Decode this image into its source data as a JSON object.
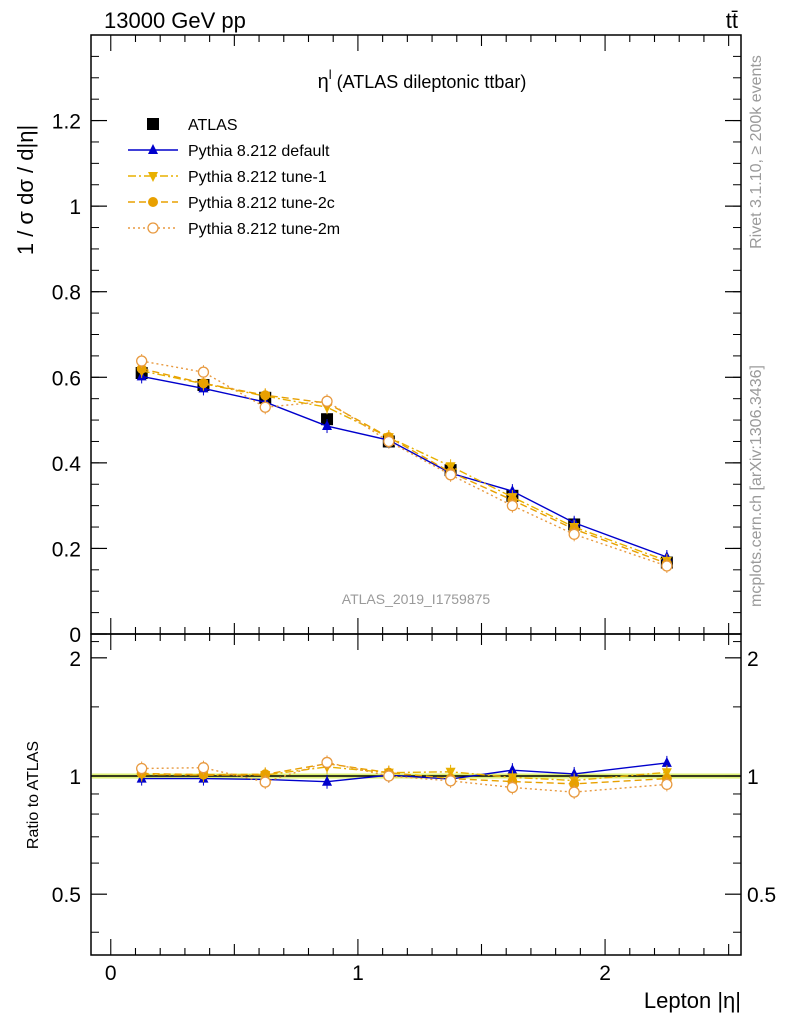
{
  "header": {
    "energy_label": "13000 GeV pp",
    "process_label": "tt̄"
  },
  "side_labels": {
    "rivet": "Rivet 3.1.10, ≥ 200k events",
    "source": "mcplots.cern.ch [arXiv:1306.3436]"
  },
  "watermark": "ATLAS_2019_I1759875",
  "chart_data": [
    {
      "type": "line",
      "panel": "main",
      "title": "η^l (ATLAS dileptonic ttbar)",
      "title_main": "η",
      "title_sup": "l",
      "title_rest": " (ATLAS dileptonic ttbar)",
      "ylabel": "1 / σ  dσ / d|η|",
      "xlabel": "",
      "xlim": [
        -0.08,
        2.55
      ],
      "ylim": [
        0,
        1.4
      ],
      "yticks": [
        0,
        0.2,
        0.4,
        0.6,
        0.8,
        1,
        1.2
      ],
      "ytick_labels": [
        "0",
        "0.2",
        "0.4",
        "0.6",
        "0.8",
        "1",
        "1.2"
      ],
      "xticks": [
        0,
        1,
        2
      ],
      "x": [
        0.125,
        0.375,
        0.625,
        0.875,
        1.125,
        1.375,
        1.625,
        1.875,
        2.25
      ],
      "legend_placement": "top-left",
      "series": [
        {
          "name": "ATLAS",
          "color": "#000000",
          "marker": "square",
          "line": "none",
          "values": [
            0.61,
            0.582,
            0.552,
            0.502,
            0.45,
            0.383,
            0.323,
            0.256,
            0.167
          ]
        },
        {
          "name": "Pythia 8.212 default",
          "color": "#0000cc",
          "marker": "triangle-up",
          "line": "solid",
          "values": [
            0.602,
            0.574,
            0.542,
            0.486,
            0.453,
            0.376,
            0.334,
            0.26,
            0.18
          ]
        },
        {
          "name": "Pythia 8.212 tune-1",
          "color": "#e8b000",
          "marker": "triangle-down",
          "line": "dash-dot",
          "values": [
            0.615,
            0.585,
            0.556,
            0.53,
            0.46,
            0.392,
            0.32,
            0.25,
            0.171
          ]
        },
        {
          "name": "Pythia 8.212 tune-2c",
          "color": "#e8a000",
          "marker": "circle",
          "line": "dashed",
          "values": [
            0.62,
            0.586,
            0.558,
            0.54,
            0.46,
            0.378,
            0.313,
            0.245,
            0.165
          ]
        },
        {
          "name": "Pythia 8.212 tune-2m",
          "color": "#e89a40",
          "marker": "open-circle",
          "line": "dotted",
          "values": [
            0.638,
            0.612,
            0.53,
            0.544,
            0.45,
            0.372,
            0.3,
            0.233,
            0.159
          ]
        }
      ]
    },
    {
      "type": "line",
      "panel": "ratio",
      "ylabel": "Ratio to ATLAS",
      "xlabel": "Lepton |η|",
      "xlim": [
        -0.08,
        2.55
      ],
      "ylim": [
        0.35,
        2.3
      ],
      "yticks": [
        0.5,
        1,
        2
      ],
      "ytick_labels": [
        "0.5",
        "1",
        "2"
      ],
      "xticks": [
        0,
        1,
        2
      ],
      "xtick_labels": [
        "0",
        "1",
        "2"
      ],
      "x": [
        0.125,
        0.375,
        0.625,
        0.875,
        1.125,
        1.375,
        1.625,
        1.875,
        2.25
      ],
      "series": [
        {
          "name": "Pythia 8.212 default",
          "color": "#0000cc",
          "marker": "triangle-up",
          "line": "solid",
          "values": [
            0.985,
            0.985,
            0.98,
            0.967,
            1.005,
            0.982,
            1.035,
            1.012,
            1.08
          ]
        },
        {
          "name": "Pythia 8.212 tune-1",
          "color": "#e8b000",
          "marker": "triangle-down",
          "line": "dash-dot",
          "values": [
            1.008,
            1.005,
            1.006,
            1.055,
            1.02,
            1.025,
            0.992,
            0.974,
            1.022
          ]
        },
        {
          "name": "Pythia 8.212 tune-2c",
          "color": "#e8a000",
          "marker": "circle",
          "line": "dashed",
          "values": [
            1.015,
            1.008,
            1.01,
            1.075,
            1.02,
            0.985,
            0.968,
            0.955,
            0.985
          ]
        },
        {
          "name": "Pythia 8.212 tune-2m",
          "color": "#e89a40",
          "marker": "open-circle",
          "line": "dotted",
          "values": [
            1.045,
            1.05,
            0.965,
            1.083,
            1.0,
            0.972,
            0.935,
            0.91,
            0.952
          ]
        }
      ]
    }
  ]
}
